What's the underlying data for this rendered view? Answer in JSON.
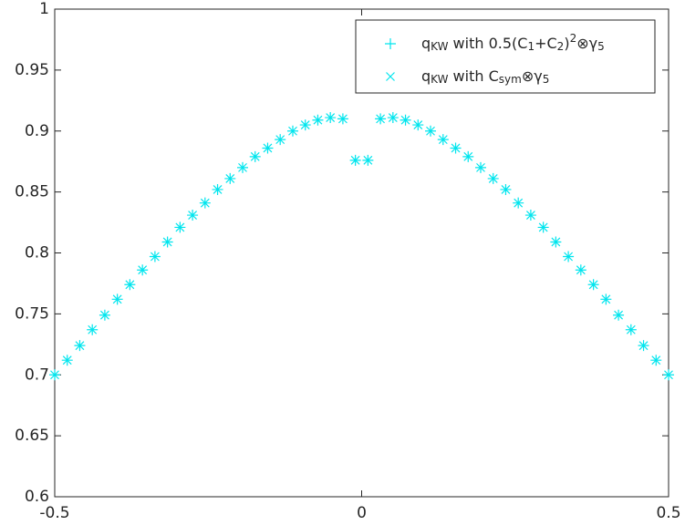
{
  "chart_data": {
    "type": "scatter",
    "xlim": [
      -0.5,
      0.5
    ],
    "xticks": [
      -0.5,
      0,
      0.5
    ],
    "ylim": [
      0.6,
      1
    ],
    "yticks": [
      0.6,
      0.65,
      0.7,
      0.75,
      0.8,
      0.85,
      0.9,
      0.95,
      1
    ],
    "legend": "upper right",
    "x": [
      -0.5,
      -0.4796,
      -0.4592,
      -0.4388,
      -0.4184,
      -0.398,
      -0.3776,
      -0.3571,
      -0.3367,
      -0.3163,
      -0.2959,
      -0.2755,
      -0.2551,
      -0.2347,
      -0.2143,
      -0.1939,
      -0.1735,
      -0.1531,
      -0.1327,
      -0.1122,
      -0.0918,
      -0.0714,
      -0.051,
      -0.0306,
      -0.0102,
      0.0102,
      0.0306,
      0.051,
      0.0714,
      0.0918,
      0.1122,
      0.1327,
      0.1531,
      0.1735,
      0.1939,
      0.2143,
      0.2347,
      0.2551,
      0.2755,
      0.2959,
      0.3163,
      0.3367,
      0.3571,
      0.3776,
      0.398,
      0.4184,
      0.4388,
      0.4592,
      0.4796,
      0.5
    ],
    "series": [
      {
        "name": "q_{KW} with 0.5(C_{1}+C_{2})^{2}⊗γ_{5}",
        "marker": "plus",
        "color": "#00e5ee",
        "values": [
          0.7,
          0.712,
          0.724,
          0.737,
          0.749,
          0.762,
          0.774,
          0.786,
          0.797,
          0.809,
          0.821,
          0.831,
          0.841,
          0.852,
          0.861,
          0.87,
          0.879,
          0.886,
          0.893,
          0.9,
          0.905,
          0.909,
          0.911,
          0.91,
          0.876,
          0.876,
          0.91,
          0.911,
          0.909,
          0.905,
          0.9,
          0.893,
          0.886,
          0.879,
          0.87,
          0.861,
          0.852,
          0.841,
          0.831,
          0.821,
          0.809,
          0.797,
          0.786,
          0.774,
          0.762,
          0.749,
          0.737,
          0.724,
          0.712,
          0.7
        ]
      },
      {
        "name": "q_{KW} with C_{sym}⊗γ_{5}",
        "marker": "cross",
        "color": "#00e5ee",
        "values": [
          0.7,
          0.712,
          0.724,
          0.737,
          0.749,
          0.762,
          0.774,
          0.786,
          0.797,
          0.809,
          0.821,
          0.831,
          0.841,
          0.852,
          0.861,
          0.87,
          0.879,
          0.886,
          0.893,
          0.9,
          0.905,
          0.909,
          0.911,
          0.91,
          0.876,
          0.876,
          0.91,
          0.911,
          0.909,
          0.905,
          0.9,
          0.893,
          0.886,
          0.879,
          0.87,
          0.861,
          0.852,
          0.841,
          0.831,
          0.821,
          0.809,
          0.797,
          0.786,
          0.774,
          0.762,
          0.749,
          0.737,
          0.724,
          0.712,
          0.7
        ]
      }
    ]
  }
}
